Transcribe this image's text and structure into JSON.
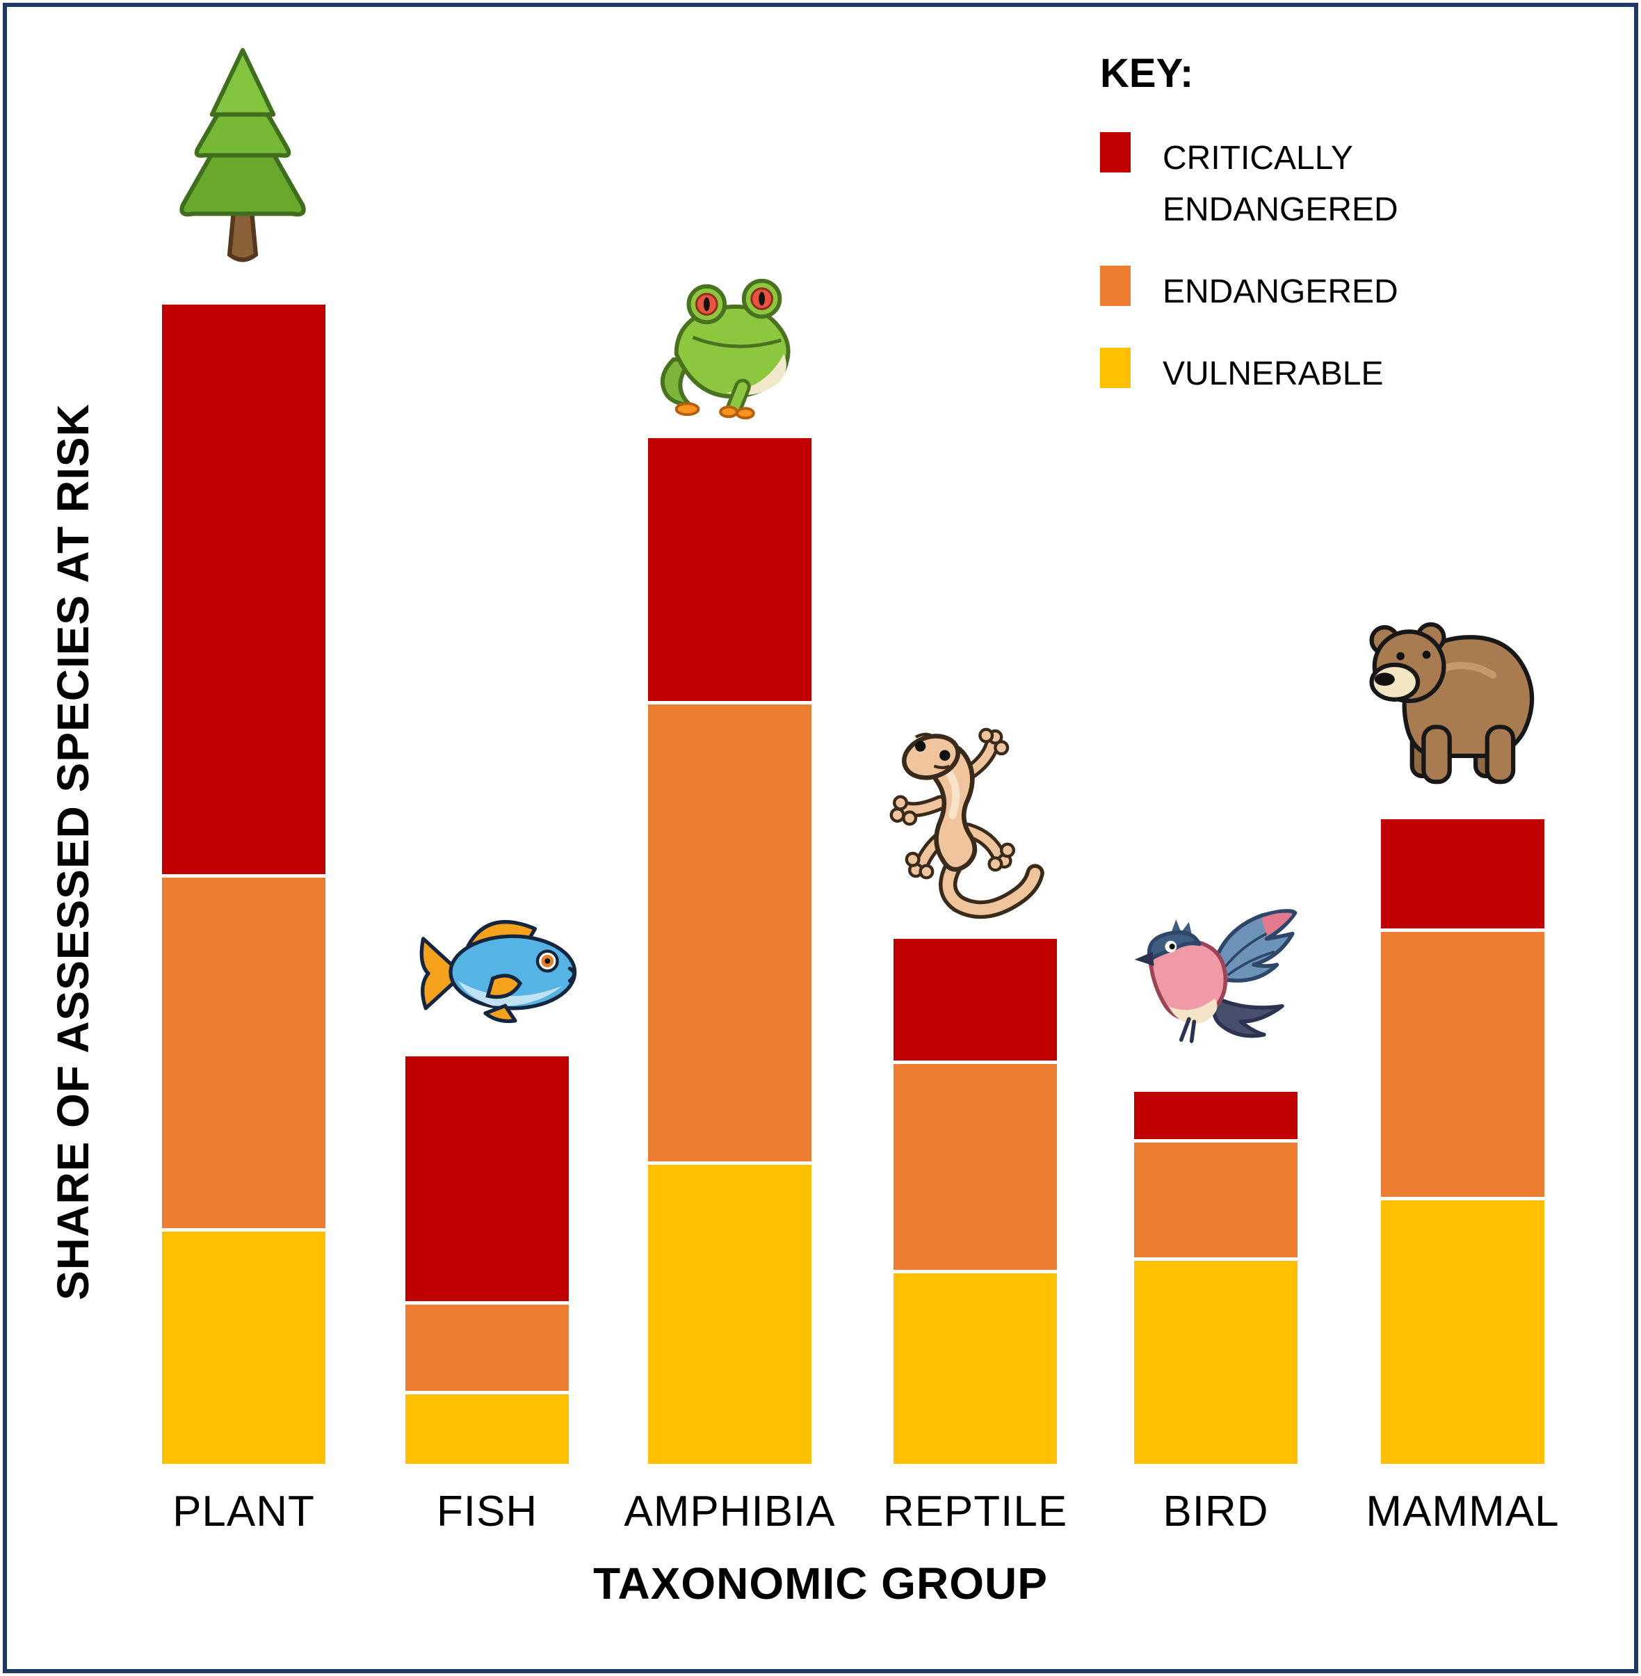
{
  "page": {
    "background": "#ffffff",
    "frame_border_color": "#1f3864"
  },
  "y_axis_title": "SHARE OF ASSESSED SPECIES AT RISK",
  "x_axis_title": "TAXONOMIC GROUP",
  "legend": {
    "title": "KEY:",
    "items": [
      {
        "label": "CRITICALLY ENDANGERED",
        "color": "#C00000"
      },
      {
        "label": "ENDANGERED",
        "color": "#ED7D31"
      },
      {
        "label": "VULNERABLE",
        "color": "#FFC000"
      }
    ]
  },
  "chart_data": {
    "type": "bar",
    "stacked": true,
    "title": "",
    "xlabel": "TAXONOMIC GROUP",
    "ylabel": "SHARE OF ASSESSED SPECIES AT RISK",
    "y_axis_numeric_scale_shown": false,
    "units": "relative share (estimated % of plot height, no numeric axis shown)",
    "grid": false,
    "legend_position": "top-right",
    "categories": [
      "PLANT",
      "FISH",
      "AMPHIBIA",
      "REPTILE",
      "BIRD",
      "MAMMAL"
    ],
    "series": [
      {
        "name": "VULNERABLE",
        "color": "#FFC000",
        "values": [
          18.4,
          5.7,
          23.6,
          15.1,
          16.1,
          20.8
        ]
      },
      {
        "name": "ENDANGERED",
        "color": "#ED7D31",
        "values": [
          27.6,
          7.0,
          35.9,
          16.3,
          9.2,
          20.9
        ]
      },
      {
        "name": "CRITICALLY ENDANGERED",
        "color": "#C00000",
        "values": [
          44.4,
          19.1,
          20.5,
          9.5,
          3.7,
          8.5
        ]
      }
    ],
    "totals_estimated": [
      90.4,
      31.8,
      80.0,
      40.9,
      29.0,
      50.2
    ],
    "icons": [
      "pine-tree",
      "fish",
      "tree-frog",
      "gecko",
      "songbird",
      "bear"
    ]
  }
}
